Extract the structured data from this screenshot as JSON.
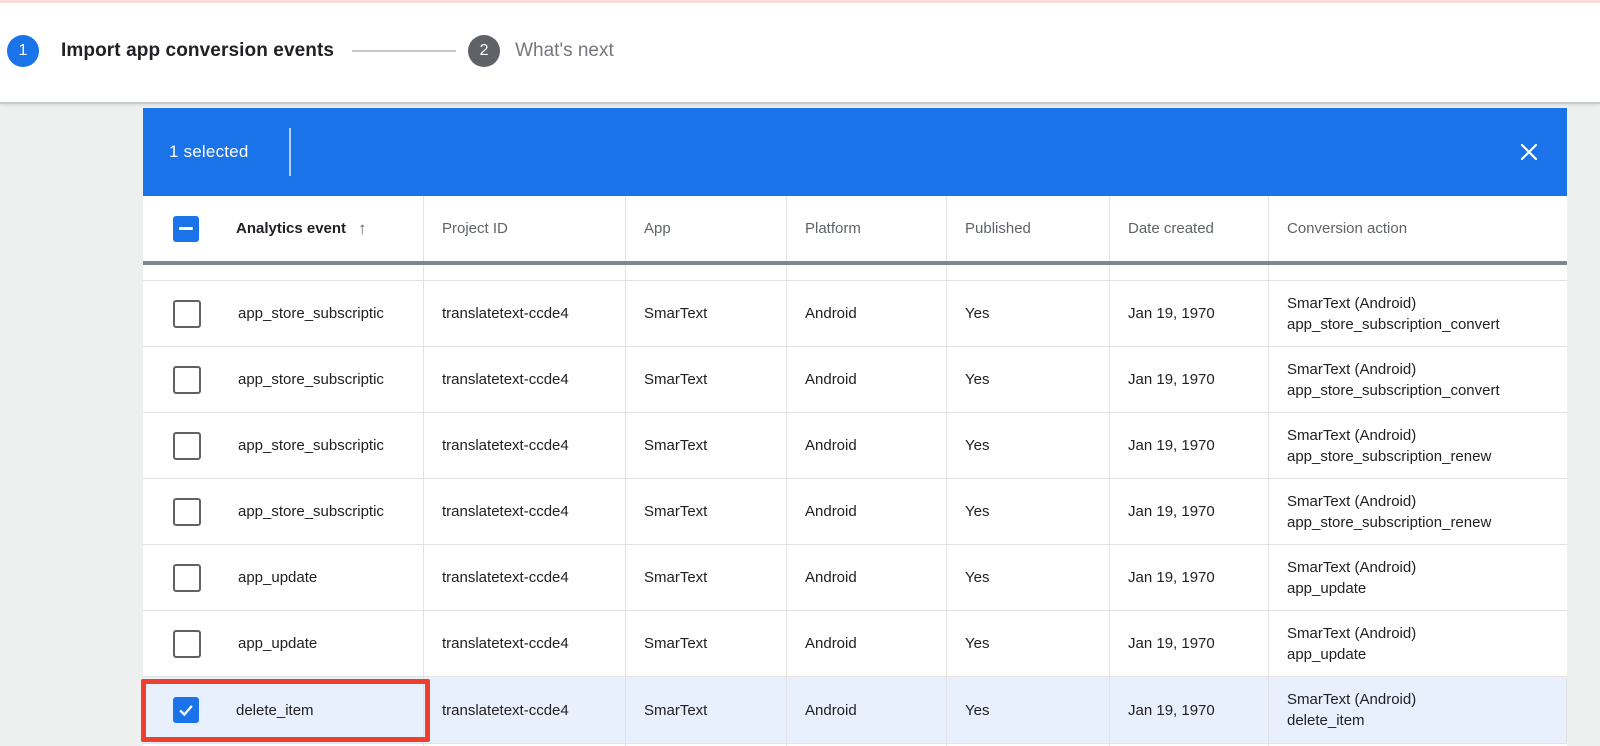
{
  "page": {
    "background_color": "#eef0f0",
    "top_accent_color": "#f9ddd9"
  },
  "stepper": {
    "active_color": "#1a73e8",
    "inactive_color": "#5f6368",
    "steps": [
      {
        "number": "1",
        "label": "Import app conversion events"
      },
      {
        "number": "2",
        "label": "What's next"
      }
    ]
  },
  "selection_toolbar": {
    "selected_text": "1 selected",
    "background_color": "#1a73e8"
  },
  "table": {
    "columns": [
      "Analytics event",
      "Project ID",
      "App",
      "Platform",
      "Published",
      "Date created",
      "Conversion action"
    ],
    "sort_glyph": "↑",
    "checkbox_color": "#1a73e8",
    "selected_row_color": "#e8f0fe",
    "highlight_color": "#ee3e2c",
    "rows": [
      {
        "checked": false,
        "selected": false,
        "highlighted": false,
        "event": "app_store_subscriptic",
        "project_id": "translatetext-ccde4",
        "app": "SmarText",
        "platform": "Android",
        "published": "Yes",
        "date_created": "Jan 19, 1970",
        "conversion_action": [
          "SmarText (Android)",
          "app_store_subscription_convert"
        ]
      },
      {
        "checked": false,
        "selected": false,
        "highlighted": false,
        "event": "app_store_subscriptic",
        "project_id": "translatetext-ccde4",
        "app": "SmarText",
        "platform": "Android",
        "published": "Yes",
        "date_created": "Jan 19, 1970",
        "conversion_action": [
          "SmarText (Android)",
          "app_store_subscription_convert"
        ]
      },
      {
        "checked": false,
        "selected": false,
        "highlighted": false,
        "event": "app_store_subscriptic",
        "project_id": "translatetext-ccde4",
        "app": "SmarText",
        "platform": "Android",
        "published": "Yes",
        "date_created": "Jan 19, 1970",
        "conversion_action": [
          "SmarText (Android)",
          "app_store_subscription_renew"
        ]
      },
      {
        "checked": false,
        "selected": false,
        "highlighted": false,
        "event": "app_store_subscriptic",
        "project_id": "translatetext-ccde4",
        "app": "SmarText",
        "platform": "Android",
        "published": "Yes",
        "date_created": "Jan 19, 1970",
        "conversion_action": [
          "SmarText (Android)",
          "app_store_subscription_renew"
        ]
      },
      {
        "checked": false,
        "selected": false,
        "highlighted": false,
        "event": "app_update",
        "project_id": "translatetext-ccde4",
        "app": "SmarText",
        "platform": "Android",
        "published": "Yes",
        "date_created": "Jan 19, 1970",
        "conversion_action": [
          "SmarText (Android)",
          "app_update"
        ]
      },
      {
        "checked": false,
        "selected": false,
        "highlighted": false,
        "event": "app_update",
        "project_id": "translatetext-ccde4",
        "app": "SmarText",
        "platform": "Android",
        "published": "Yes",
        "date_created": "Jan 19, 1970",
        "conversion_action": [
          "SmarText (Android)",
          "app_update"
        ]
      },
      {
        "checked": true,
        "selected": true,
        "highlighted": true,
        "event": "delete_item",
        "project_id": "translatetext-ccde4",
        "app": "SmarText",
        "platform": "Android",
        "published": "Yes",
        "date_created": "Jan 19, 1970",
        "conversion_action": [
          "SmarText (Android)",
          "delete_item"
        ]
      }
    ]
  }
}
